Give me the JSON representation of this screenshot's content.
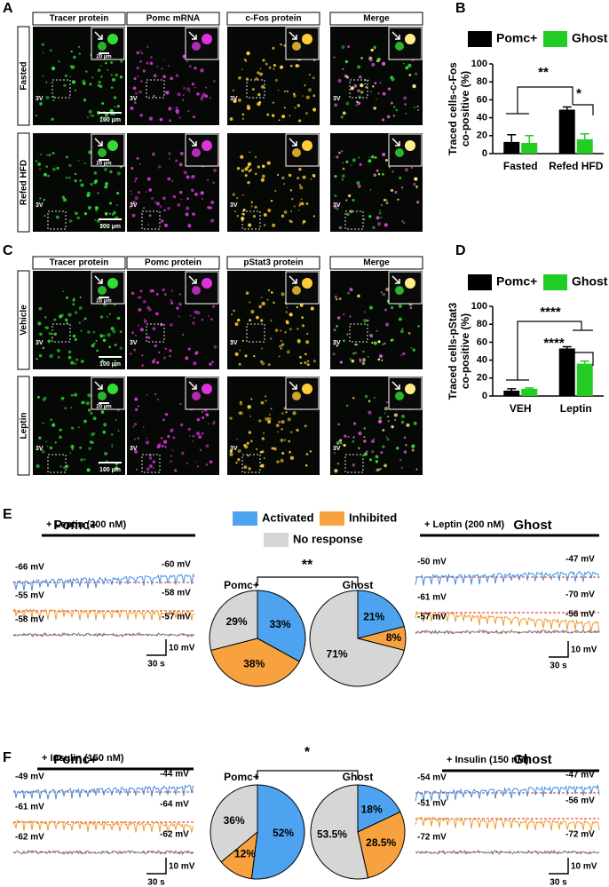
{
  "panel_labels": [
    "A",
    "B",
    "C",
    "D",
    "E",
    "F"
  ],
  "microscopy": [
    {
      "columns": [
        "Tracer protein",
        "Pomc mRNA",
        "c-Fos protein",
        "Merge"
      ],
      "rows": [
        "Fasted",
        "Refed HFD"
      ],
      "inset_scale": "20 µm",
      "scale": "100 µm",
      "landmark": "3V"
    },
    {
      "columns": [
        "Tracer protein",
        "Pomc protein",
        "pStat3 protein",
        "Merge"
      ],
      "rows": [
        "Vehicle",
        "Leptin"
      ],
      "inset_scale": "20 µm",
      "scale": "100 µm",
      "landmark": "3V"
    }
  ],
  "recordings": [
    {
      "significance": "**",
      "groups": [
        {
          "title": "Pomc+",
          "treatment": "+ Leptin (200 nM)",
          "traces": [
            {
              "start": "-66 mV",
              "end": "-60 mV"
            },
            {
              "start": "-55 mV",
              "end": "-58 mV"
            },
            {
              "start": "-58 mV",
              "end": "-57 mV"
            }
          ],
          "time_scale": "30 s",
          "voltage_scale": "10 mV"
        },
        {
          "title": "Ghost",
          "treatment": "+ Leptin (200 nM)",
          "traces": [
            {
              "start": "-50 mV",
              "end": "-47 mV"
            },
            {
              "start": "-61 mV",
              "end": "-70 mV"
            },
            {
              "start": "-57 mV",
              "end": "-56 mV"
            }
          ],
          "time_scale": "30 s",
          "voltage_scale": "10 mV"
        }
      ]
    },
    {
      "significance": "*",
      "groups": [
        {
          "title": "Pomc+",
          "treatment": "+ Insulin (150 nM)",
          "traces": [
            {
              "start": "-49 mV",
              "end": "-44 mV"
            },
            {
              "start": "-61 mV",
              "end": "-64 mV"
            },
            {
              "start": "-62 mV",
              "end": "-62 mV"
            }
          ],
          "time_scale": "30 s",
          "voltage_scale": "10 mV"
        },
        {
          "title": "Ghost",
          "treatment": "+ Insulin (150 nM)",
          "traces": [
            {
              "start": "-54 mV",
              "end": "-47 mV"
            },
            {
              "start": "-51 mV",
              "end": "-56 mV"
            },
            {
              "start": "-72 mV",
              "end": "-72 mV"
            }
          ],
          "time_scale": "30 s",
          "voltage_scale": "10 mV"
        }
      ]
    }
  ],
  "chart_data": [
    {
      "type": "bar",
      "y_label": [
        "Traced cells-c-Fos",
        "co-positive (%)"
      ],
      "categories": [
        "Fasted",
        "Refed HFD"
      ],
      "series": [
        {
          "name": "Pomc+",
          "color": "#000000",
          "values": [
            13,
            49
          ],
          "errors": [
            8,
            3
          ]
        },
        {
          "name": "Ghost",
          "color": "#22cc22",
          "values": [
            12,
            16
          ],
          "errors": [
            8,
            6
          ]
        }
      ],
      "ylim": [
        0,
        100
      ],
      "yticks": [
        0,
        20,
        40,
        60,
        80,
        100
      ],
      "annotations": [
        "**",
        "*"
      ]
    },
    {
      "type": "bar",
      "y_label": [
        "Traced cells-pStat3",
        "co-positive (%)"
      ],
      "categories": [
        "VEH",
        "Leptin"
      ],
      "series": [
        {
          "name": "Pomc+",
          "color": "#000000",
          "values": [
            6,
            53
          ],
          "errors": [
            2,
            2
          ]
        },
        {
          "name": "Ghost",
          "color": "#22cc22",
          "values": [
            8,
            36
          ],
          "errors": [
            1,
            3
          ]
        }
      ],
      "ylim": [
        0,
        100
      ],
      "yticks": [
        0,
        20,
        40,
        60,
        80,
        100
      ],
      "annotations": [
        "****",
        "****"
      ]
    },
    {
      "type": "pie",
      "title": "Pomc+",
      "categories": [
        "Activated",
        "Inhibited",
        "No response"
      ],
      "colors": [
        "#4da3f0",
        "#f7a23e",
        "#d6d6d6"
      ],
      "values": [
        33,
        38,
        29
      ],
      "value_labels": [
        "33%",
        "38%",
        "29%"
      ]
    },
    {
      "type": "pie",
      "title": "Ghost",
      "categories": [
        "Activated",
        "Inhibited",
        "No response"
      ],
      "colors": [
        "#4da3f0",
        "#f7a23e",
        "#d6d6d6"
      ],
      "values": [
        21,
        8,
        71
      ],
      "value_labels": [
        "21%",
        "8%",
        "71%"
      ]
    },
    {
      "type": "pie",
      "title": "Pomc+",
      "categories": [
        "Activated",
        "Inhibited",
        "No response"
      ],
      "colors": [
        "#4da3f0",
        "#f7a23e",
        "#d6d6d6"
      ],
      "values": [
        52,
        12,
        36
      ],
      "value_labels": [
        "52%",
        "12%",
        "36%"
      ]
    },
    {
      "type": "pie",
      "title": "Ghost",
      "categories": [
        "Activated",
        "Inhibited",
        "No response"
      ],
      "colors": [
        "#4da3f0",
        "#f7a23e",
        "#d6d6d6"
      ],
      "values": [
        18,
        28.5,
        53.5
      ],
      "value_labels": [
        "18%",
        "28.5%",
        "53.5%"
      ]
    }
  ]
}
